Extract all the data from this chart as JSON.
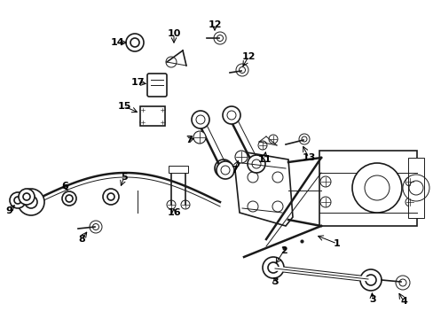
{
  "background_color": "#ffffff",
  "line_color": "#1a1a1a",
  "figsize": [
    4.89,
    3.6
  ],
  "dpi": 100,
  "xlim": [
    0,
    489
  ],
  "ylim": [
    360,
    0
  ]
}
